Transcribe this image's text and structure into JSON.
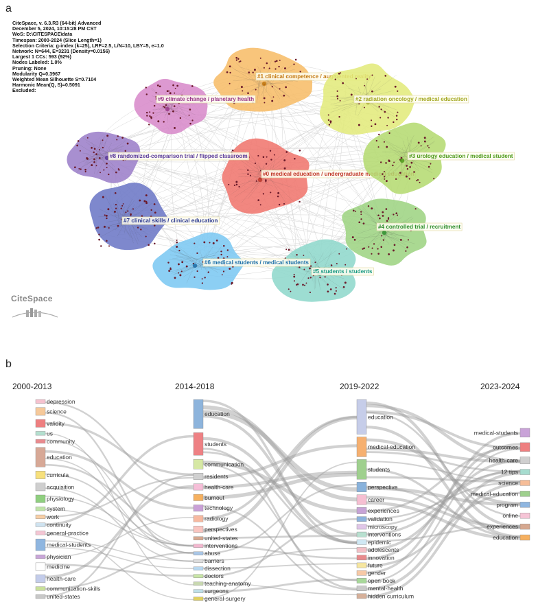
{
  "panel_a": {
    "letter": "a",
    "info_lines": [
      "CiteSpace, v. 6.3.R3 (64-bit) Advanced",
      "December 5, 2024, 10:15:28 PM CST",
      "WoS: D:\\CITESPACE\\data",
      "Timespan: 2000-2024 (Slice Length=1)",
      "Selection Criteria: g-index (k=25), LRF=2.5, L/N=10, LBY=5, e=1.0",
      "Network: N=644, E=3231 (Density=0.0156)",
      "Largest 1 CCs: 593 (92%)",
      "Nodes Labeled: 1.0%",
      "Pruning: None",
      "Modularity Q=0.3967",
      "Weighted Mean Silhouette S=0.7104",
      "Harmonic Mean(Q, S)=0.5091",
      "Excluded:"
    ],
    "logo_text": "CiteSpace",
    "clusters": [
      {
        "id": "c0",
        "label": "#0 medical education / undergraduate medical education",
        "color": "#f0766e",
        "text_color": "#c0392b"
      },
      {
        "id": "c1",
        "label": "#1 clinical competence / augmented reality",
        "color": "#f7bd69",
        "text_color": "#c47a12"
      },
      {
        "id": "c2",
        "label": "#2 radiation oncology / medical education",
        "color": "#e2ea7c",
        "text_color": "#a3a822"
      },
      {
        "id": "c3",
        "label": "#3 urology education / medical student",
        "color": "#b5db72",
        "text_color": "#4e9a1a"
      },
      {
        "id": "c4",
        "label": "#4 controlled trial / recruitment",
        "color": "#9ed483",
        "text_color": "#2f8f2f"
      },
      {
        "id": "c5",
        "label": "#5 students / students",
        "color": "#8fd8cc",
        "text_color": "#1a9a82"
      },
      {
        "id": "c6",
        "label": "#6 medical students / medical students",
        "color": "#7cc8f2",
        "text_color": "#1d6fa8"
      },
      {
        "id": "c7",
        "label": "#7 clinical skills / clinical education",
        "color": "#6c78c6",
        "text_color": "#2c3a8f"
      },
      {
        "id": "c8",
        "label": "#8 randomized-comparison trial / flipped classroom",
        "color": "#9c7fca",
        "text_color": "#5a3a9a"
      },
      {
        "id": "c9",
        "label": "#9 climate change / planetary health",
        "color": "#d88bcb",
        "text_color": "#9a3a8a"
      }
    ]
  },
  "panel_b": {
    "letter": "b",
    "periods": [
      "2000-2013",
      "2014-2018",
      "2019-2022",
      "2023-2024"
    ],
    "columns": [
      [
        {
          "label": "depression",
          "color": "#f6c2cf"
        },
        {
          "label": "science",
          "color": "#f6c99a"
        },
        {
          "label": "validity",
          "color": "#ee7f80"
        },
        {
          "label": "us",
          "color": "#b4dfcf"
        },
        {
          "label": "community",
          "color": "#e98a8e"
        },
        {
          "label": "education",
          "color": "#d7a896"
        },
        {
          "label": "curricula",
          "color": "#f7e07b"
        },
        {
          "label": "acquisition",
          "color": "#cfcfcf"
        },
        {
          "label": "physiology",
          "color": "#8fcf7f"
        },
        {
          "label": "system",
          "color": "#bfe3a8"
        },
        {
          "label": "work",
          "color": "#f8cfa6"
        },
        {
          "label": "continuity",
          "color": "#cfe3f0"
        },
        {
          "label": "general-practice",
          "color": "#f4c6d4"
        },
        {
          "label": "medical-students",
          "color": "#8fb6e0"
        },
        {
          "label": "physician",
          "color": "#c9a6d8"
        },
        {
          "label": "medicine",
          "color": "#ffffff"
        },
        {
          "label": "health-care",
          "color": "#c3ccea"
        },
        {
          "label": "communication-skills",
          "color": "#c9e09a"
        },
        {
          "label": "united-states",
          "color": "#c8c8c8"
        }
      ],
      [
        {
          "label": "education",
          "color": "#8db4dc"
        },
        {
          "label": "students",
          "color": "#ee8184"
        },
        {
          "label": "communication",
          "color": "#d6e8a4"
        },
        {
          "label": "residents",
          "color": "#d0d0d0"
        },
        {
          "label": "health-care",
          "color": "#f6bfd8"
        },
        {
          "label": "burnout",
          "color": "#f6b160"
        },
        {
          "label": "technology",
          "color": "#c9a0d6"
        },
        {
          "label": "radiology",
          "color": "#f7b9a0"
        },
        {
          "label": "perspectives",
          "color": "#f9c5c0"
        },
        {
          "label": "united-states",
          "color": "#d6a890"
        },
        {
          "label": "interventions",
          "color": "#f3b7cf"
        },
        {
          "label": "abuse",
          "color": "#a9c6e6"
        },
        {
          "label": "barriers",
          "color": "#dcdcdc"
        },
        {
          "label": "dissection",
          "color": "#b8d8f0"
        },
        {
          "label": "doctors",
          "color": "#c8e6a6"
        },
        {
          "label": "teaching-anatomy",
          "color": "#c8d8b0"
        },
        {
          "label": "surgeons",
          "color": "#bfe0e8"
        },
        {
          "label": "general-surgery",
          "color": "#e0d060"
        }
      ],
      [
        {
          "label": "education",
          "color": "#c6cde9"
        },
        {
          "label": "medical-education",
          "color": "#f6b070"
        },
        {
          "label": "students",
          "color": "#9fd08e"
        },
        {
          "label": "perspective",
          "color": "#88b2dc"
        },
        {
          "label": "career",
          "color": "#f6bfd2"
        },
        {
          "label": "experiences",
          "color": "#c7a3d6"
        },
        {
          "label": "validation",
          "color": "#8db3dc"
        },
        {
          "label": "microscopy",
          "color": "#e0c6e8"
        },
        {
          "label": "interventions",
          "color": "#b8e0d0"
        },
        {
          "label": "epidemic",
          "color": "#d0e8f4"
        },
        {
          "label": "adolescents",
          "color": "#f2c0c6"
        },
        {
          "label": "innovation",
          "color": "#e88a8c"
        },
        {
          "label": "future",
          "color": "#f6e6a0"
        },
        {
          "label": "gender",
          "color": "#f7c9a6"
        },
        {
          "label": "open-book",
          "color": "#a8d89a"
        },
        {
          "label": "mental-health",
          "color": "#c9c9c9"
        },
        {
          "label": "hidden curriculum",
          "color": "#d6b09a"
        }
      ],
      [
        {
          "label": "medical-students",
          "color": "#c9a3d8"
        },
        {
          "label": "outcomes",
          "color": "#ee7f80"
        },
        {
          "label": "health-care",
          "color": "#cfcfcf"
        },
        {
          "label": "12 tips",
          "color": "#a6dccf"
        },
        {
          "label": "science",
          "color": "#f6bd98"
        },
        {
          "label": "medical-education",
          "color": "#9fd08e"
        },
        {
          "label": "program",
          "color": "#8fb6e0"
        },
        {
          "label": "online",
          "color": "#f6c4d6"
        },
        {
          "label": "experiences",
          "color": "#d6a890"
        },
        {
          "label": "education",
          "color": "#f6b060"
        }
      ]
    ]
  }
}
